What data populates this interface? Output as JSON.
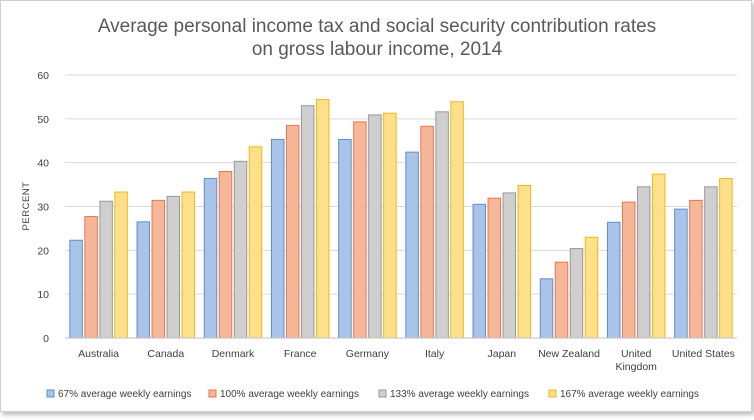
{
  "chart_data": {
    "type": "bar",
    "title": "Average personal income tax and social security contribution rates",
    "subtitle": "on gross labour income, 2014",
    "xlabel": "",
    "ylabel": "PERCENT",
    "ylim": [
      0,
      60
    ],
    "yticks": [
      "0",
      "10",
      "20",
      "30",
      "40",
      "50",
      "60"
    ],
    "grid": true,
    "legend_position": "bottom",
    "categories": [
      [
        "Australia"
      ],
      [
        "Canada"
      ],
      [
        "Denmark"
      ],
      [
        "France"
      ],
      [
        "Germany"
      ],
      [
        "Italy"
      ],
      [
        "Japan"
      ],
      [
        "New Zealand"
      ],
      [
        "United",
        "Kingdom"
      ],
      [
        "United States"
      ]
    ],
    "series": [
      {
        "name": "67% average weekly earnings",
        "fill": "#a9c4e6",
        "stroke": "#5b8fcf",
        "values": [
          22.3,
          26.5,
          36.4,
          45.3,
          45.3,
          42.4,
          30.5,
          13.5,
          26.4,
          29.4
        ]
      },
      {
        "name": "100% average weekly earnings",
        "fill": "#f6b69a",
        "stroke": "#e8764c",
        "values": [
          27.7,
          31.4,
          38.0,
          48.5,
          49.3,
          48.3,
          31.9,
          17.3,
          31.0,
          31.4
        ]
      },
      {
        "name": "133% average weekly earnings",
        "fill": "#cfcfcf",
        "stroke": "#999999",
        "values": [
          31.2,
          32.3,
          40.3,
          53.0,
          50.9,
          51.6,
          33.1,
          20.4,
          34.5,
          34.5
        ]
      },
      {
        "name": "167% average weekly earnings",
        "fill": "#ffe08a",
        "stroke": "#f2b51f",
        "values": [
          33.3,
          33.3,
          43.6,
          54.4,
          51.3,
          53.9,
          34.8,
          23.0,
          37.4,
          36.4
        ]
      }
    ]
  }
}
